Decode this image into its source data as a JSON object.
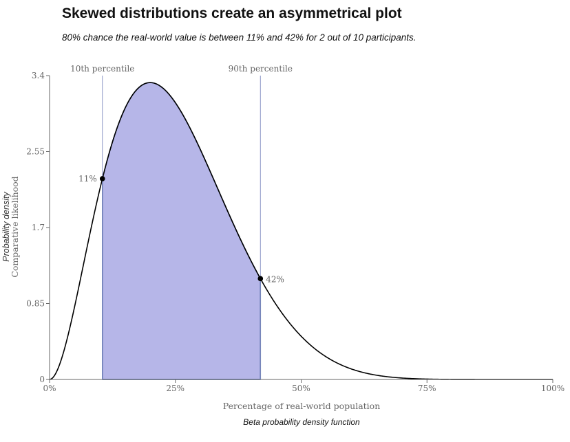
{
  "header": {
    "title": "Skewed distributions create an asymmetrical plot",
    "subtitle": "80% chance the real-world value is between 11% and 42% for 2 out of 10 participants."
  },
  "caption": "Beta probability density function",
  "colors": {
    "fill": "#b6b6e8",
    "outline": "#2e4e8f",
    "curve": "#000000",
    "marker_line": "#8a95c6",
    "axis": "#666666"
  },
  "chart_data": {
    "type": "area",
    "distribution": "beta",
    "params": {
      "alpha": 3,
      "beta": 9
    },
    "xlabel": "Percentage of real-world population",
    "ylabel": "Probability density",
    "ylabel2": "Comparative likelihood",
    "xlim": [
      0,
      1
    ],
    "ylim": [
      0,
      3.4
    ],
    "x_ticks": [
      {
        "value": 0,
        "label": "0%"
      },
      {
        "value": 0.25,
        "label": "25%"
      },
      {
        "value": 0.5,
        "label": "50%"
      },
      {
        "value": 0.75,
        "label": "75%"
      },
      {
        "value": 1,
        "label": "100%"
      }
    ],
    "y_ticks": [
      {
        "value": 0,
        "label": "0"
      },
      {
        "value": 0.85,
        "label": "0.85"
      },
      {
        "value": 1.7,
        "label": "1.7"
      },
      {
        "value": 2.55,
        "label": "2.55"
      },
      {
        "value": 3.4,
        "label": "3.4"
      }
    ],
    "percentiles": [
      {
        "name": "10th percentile",
        "x": 0.105,
        "point_label": "11%"
      },
      {
        "name": "90th percentile",
        "x": 0.419,
        "point_label": "42%"
      }
    ],
    "grid": false
  }
}
